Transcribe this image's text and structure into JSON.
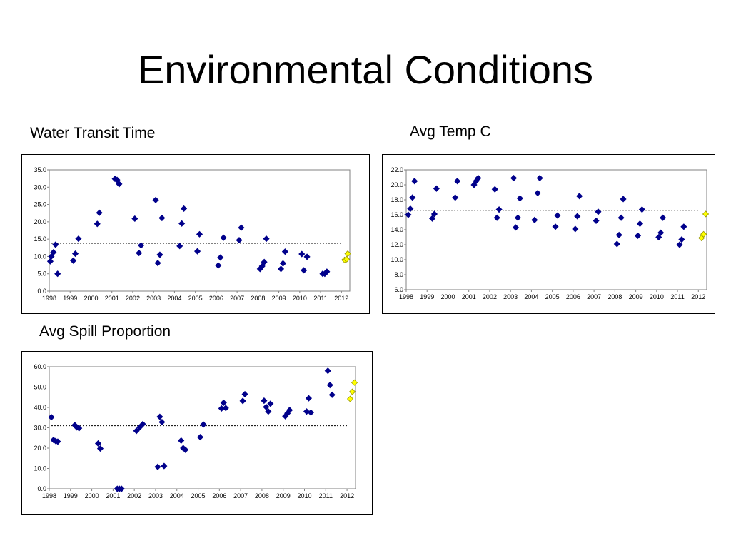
{
  "slide": {
    "title": "Environmental Conditions"
  },
  "colors": {
    "series": "#00008B",
    "highlight": "#FFFF00",
    "highlight_stroke": "#999900",
    "mean_line": "#000000"
  },
  "chart_data": [
    {
      "id": "water-transit-time",
      "type": "scatter",
      "title": "Water Transit Time",
      "xlabel": "",
      "ylabel": "",
      "xlim": [
        1998,
        2012.4
      ],
      "ylim": [
        0,
        35
      ],
      "xticks": [
        "1998",
        "1999",
        "2000",
        "2001",
        "2002",
        "2003",
        "2004",
        "2005",
        "2006",
        "2007",
        "2008",
        "2009",
        "2010",
        "2011",
        "2012"
      ],
      "yticks": [
        "0.0",
        "5.0",
        "10.0",
        "15.0",
        "20.0",
        "25.0",
        "30.0",
        "35.0"
      ],
      "grid": false,
      "mean_line": 13.8,
      "series": [
        {
          "x": [
            1998.05,
            1998.1,
            1998.2,
            1998.3,
            1998.4,
            1999.15,
            1999.25,
            1999.4,
            2000.3,
            2000.4,
            2001.15,
            2001.25,
            2001.35,
            2002.1,
            2002.3,
            2002.4,
            2003.1,
            2003.2,
            2003.3,
            2003.4,
            2004.25,
            2004.35,
            2004.45,
            2005.1,
            2005.2,
            2006.1,
            2006.2,
            2006.35,
            2007.1,
            2007.2,
            2008.1,
            2008.2,
            2008.3,
            2008.4,
            2009.1,
            2009.2,
            2009.3,
            2010.1,
            2010.2,
            2010.35,
            2011.1,
            2011.2,
            2011.3
          ],
          "y": [
            8.6,
            10.0,
            11.2,
            13.4,
            5.0,
            8.8,
            10.8,
            15.1,
            19.4,
            22.6,
            32.4,
            32.1,
            30.9,
            20.9,
            11.0,
            13.2,
            26.3,
            8.1,
            10.5,
            21.1,
            13.0,
            19.5,
            23.8,
            11.5,
            16.4,
            7.4,
            9.7,
            15.4,
            14.7,
            18.3,
            6.4,
            7.2,
            8.4,
            15.1,
            6.4,
            8.0,
            11.4,
            10.7,
            6.0,
            9.9,
            5.0,
            5.0,
            5.6
          ]
        },
        {
          "x": [
            2012.15,
            2012.25,
            2012.3
          ],
          "y": [
            9.0,
            9.2,
            10.8
          ],
          "highlight": true
        }
      ]
    },
    {
      "id": "avg-temp-c",
      "type": "scatter",
      "title": "Avg Temp C",
      "xlabel": "",
      "ylabel": "",
      "xlim": [
        1998,
        2012.4
      ],
      "ylim": [
        6,
        22
      ],
      "xticks": [
        "1998",
        "1999",
        "2000",
        "2001",
        "2002",
        "2003",
        "2004",
        "2005",
        "2006",
        "2007",
        "2008",
        "2009",
        "2010",
        "2011",
        "2012"
      ],
      "yticks": [
        "6.0",
        "8.0",
        "10.0",
        "12.0",
        "14.0",
        "16.0",
        "18.0",
        "20.0",
        "22.0"
      ],
      "grid": false,
      "mean_line": 16.6,
      "series": [
        {
          "x": [
            1998.1,
            1998.2,
            1998.3,
            1998.4,
            1999.25,
            1999.35,
            1999.45,
            2000.35,
            2000.45,
            2001.25,
            2001.35,
            2001.45,
            2002.25,
            2002.35,
            2002.45,
            2003.15,
            2003.25,
            2003.35,
            2003.45,
            2004.15,
            2004.3,
            2004.4,
            2005.15,
            2005.25,
            2006.1,
            2006.2,
            2006.3,
            2007.1,
            2007.2,
            2008.1,
            2008.2,
            2008.3,
            2008.4,
            2009.1,
            2009.2,
            2009.3,
            2010.1,
            2010.2,
            2010.3,
            2011.1,
            2011.2,
            2011.3
          ],
          "y": [
            16.0,
            16.8,
            18.3,
            20.5,
            15.5,
            16.1,
            19.5,
            18.3,
            20.5,
            20.0,
            20.5,
            20.9,
            19.4,
            15.6,
            16.7,
            20.9,
            14.3,
            15.6,
            18.2,
            15.3,
            18.9,
            20.9,
            14.4,
            15.9,
            14.1,
            15.8,
            18.5,
            15.2,
            16.4,
            12.1,
            13.3,
            15.6,
            18.1,
            13.2,
            14.8,
            16.7,
            13.0,
            13.6,
            15.6,
            12.0,
            12.7,
            14.4
          ]
        },
        {
          "x": [
            2012.15,
            2012.25,
            2012.35
          ],
          "y": [
            12.9,
            13.4,
            16.1
          ],
          "highlight": true
        }
      ]
    },
    {
      "id": "avg-spill-proportion",
      "type": "scatter",
      "title": "Avg Spill Proportion",
      "xlabel": "",
      "ylabel": "",
      "xlim": [
        1998,
        2012.4
      ],
      "ylim": [
        0,
        60
      ],
      "xticks": [
        "1998",
        "1999",
        "2000",
        "2001",
        "2002",
        "2003",
        "2004",
        "2005",
        "2006",
        "2007",
        "2008",
        "2009",
        "2010",
        "2011",
        "2012"
      ],
      "yticks": [
        "0.0",
        "10.0",
        "20.0",
        "30.0",
        "40.0",
        "50.0",
        "60.0"
      ],
      "grid": false,
      "mean_line": 31.0,
      "series": [
        {
          "x": [
            1998.1,
            1998.2,
            1998.3,
            1998.4,
            1999.2,
            1999.3,
            1999.4,
            2000.3,
            2000.4,
            2001.2,
            2001.3,
            2001.4,
            2002.1,
            2002.25,
            2002.4,
            2003.1,
            2003.2,
            2003.3,
            2003.4,
            2004.2,
            2004.3,
            2004.4,
            2005.1,
            2005.25,
            2006.1,
            2006.2,
            2006.3,
            2007.1,
            2007.2,
            2008.1,
            2008.2,
            2008.3,
            2008.4,
            2009.1,
            2009.2,
            2009.3,
            2010.1,
            2010.2,
            2010.3,
            2011.1,
            2011.2,
            2011.3
          ],
          "y": [
            35.2,
            24.0,
            23.5,
            23.2,
            31.3,
            30.2,
            29.8,
            22.3,
            19.8,
            0.0,
            0.0,
            0.0,
            28.5,
            30.2,
            31.8,
            10.8,
            35.4,
            32.8,
            11.2,
            23.7,
            20.0,
            19.2,
            25.4,
            31.6,
            39.5,
            42.3,
            39.7,
            43.2,
            46.5,
            43.3,
            40.2,
            38.0,
            41.8,
            35.7,
            37.1,
            38.7,
            38.0,
            44.5,
            37.5,
            58.0,
            51.0,
            46.2
          ]
        },
        {
          "x": [
            2012.15,
            2012.25,
            2012.35
          ],
          "y": [
            44.2,
            47.7,
            52.2
          ],
          "highlight": true
        }
      ]
    }
  ]
}
